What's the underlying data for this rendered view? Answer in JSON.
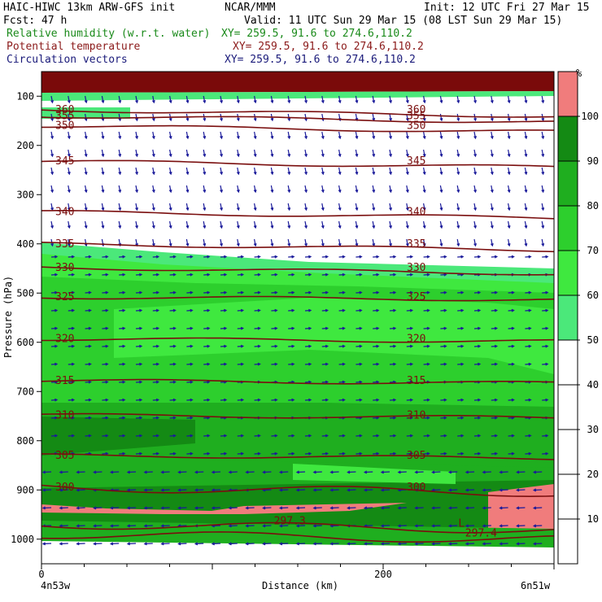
{
  "header": {
    "line1_left": "HAIC-HIWC 13km ARW-GFS init",
    "line1_mid": "NCAR/MMM",
    "line1_right": "Init: 12 UTC Fri 27 Mar 15",
    "line2_left": "Fcst:    47 h",
    "line2_right": "Valid: 11 UTC Sun 29 Mar 15 (08 LST Sun 29 Mar 15)",
    "field1_name": "Relative humidity (w.r.t. water)",
    "field1_xy": "XY= 259.5, 91.6 to 274.6,110.2",
    "field2_name": "Potential temperature",
    "field2_xy": "XY= 259.5, 91.6 to 274.6,110.2",
    "field3_name": "Circulation vectors",
    "field3_xy": "XY= 259.5, 91.6 to 274.6,110.2"
  },
  "colors": {
    "field1": "#1a8a1a",
    "field2": "#8b1a1a",
    "field3": "#1a1a7a",
    "isentrope": "#7a0e0e",
    "vector": "#1a1a9a",
    "outline": "#000000"
  },
  "chart_data": {
    "type": "cross-section",
    "ylabel": "Pressure (hPa)",
    "xlabel": "Distance (km)",
    "x_left_label": "4n53w",
    "x_right_label": "6n51w",
    "xlim": [
      0,
      300
    ],
    "ylim": [
      1050,
      50
    ],
    "x_ticks": [
      0,
      200
    ],
    "y_ticks": [
      100,
      200,
      300,
      400,
      500,
      600,
      700,
      800,
      900,
      1000
    ],
    "colorbar": {
      "unit": "%",
      "levels": [
        10,
        20,
        30,
        40,
        50,
        60,
        70,
        80,
        90,
        100
      ],
      "colors": [
        "#ffffff",
        "#ffffff",
        "#ffffff",
        "#ffffff",
        "#ffffff",
        "#4be87a",
        "#3fe83f",
        "#2dcf2d",
        "#1fae1f",
        "#148a14",
        "#f07c7c"
      ]
    },
    "isentropes": [
      {
        "theta": 360,
        "p": 128
      },
      {
        "theta": 355,
        "p": 140
      },
      {
        "theta": 350,
        "p": 160
      },
      {
        "theta": 345,
        "p": 232
      },
      {
        "theta": 340,
        "p": 335
      },
      {
        "theta": 335,
        "p": 400
      },
      {
        "theta": 330,
        "p": 448
      },
      {
        "theta": 325,
        "p": 508
      },
      {
        "theta": 320,
        "p": 593
      },
      {
        "theta": 315,
        "p": 678
      },
      {
        "theta": 310,
        "p": 748
      },
      {
        "theta": 305,
        "p": 830
      },
      {
        "theta": 300,
        "p": 895
      },
      {
        "theta": 297.3,
        "p": 970
      },
      {
        "theta": 297.4,
        "p": 990
      }
    ],
    "annotations": [
      {
        "text": "L",
        "x": 244,
        "p": 975
      },
      {
        "text": "297.4",
        "x": 248,
        "p": 995
      },
      {
        "text": "297.3",
        "x": 136,
        "p": 970
      }
    ]
  }
}
